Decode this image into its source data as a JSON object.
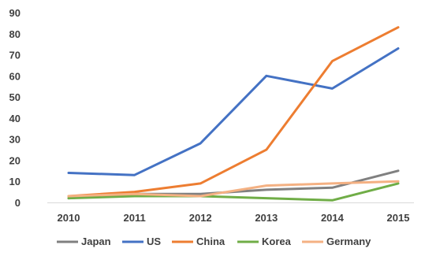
{
  "chart_data": {
    "type": "line",
    "title": "",
    "xlabel": "",
    "ylabel": "",
    "x": [
      "2010",
      "2011",
      "2012",
      "2013",
      "2014",
      "2015"
    ],
    "ylim": [
      0,
      90
    ],
    "yticks": [
      0,
      10,
      20,
      30,
      40,
      50,
      60,
      70,
      80,
      90
    ],
    "grid": false,
    "legend_position": "bottom",
    "series": [
      {
        "name": "Japan",
        "color": "#808080",
        "values": [
          2,
          4,
          4,
          6,
          7,
          15
        ]
      },
      {
        "name": "US",
        "color": "#4472c4",
        "values": [
          14,
          13,
          28,
          60,
          54,
          73
        ]
      },
      {
        "name": "China",
        "color": "#ed7d31",
        "values": [
          3,
          5,
          9,
          25,
          67,
          83
        ]
      },
      {
        "name": "Korea",
        "color": "#70ad47",
        "values": [
          2,
          3,
          3,
          2,
          1,
          9
        ]
      },
      {
        "name": "Germany",
        "color": "#f4b183",
        "values": [
          3,
          4,
          3,
          8,
          9,
          10
        ]
      }
    ]
  }
}
